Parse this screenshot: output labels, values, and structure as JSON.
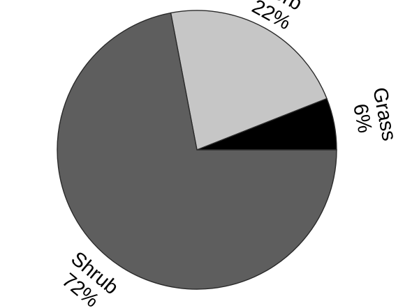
{
  "chart_data": {
    "type": "pie",
    "slices": [
      {
        "label": "Grass",
        "percent_label": "6%",
        "value": 6,
        "color": "#000000"
      },
      {
        "label": "Forb",
        "percent_label": "22%",
        "value": 22,
        "color": "#c6c6c6"
      },
      {
        "label": "Shrub",
        "percent_label": "72%",
        "value": 72,
        "color": "#5e5e5e"
      }
    ],
    "start": "3 o'clock",
    "direction": "counterclockwise",
    "legend": "none (labels outside slices, rotated)"
  }
}
